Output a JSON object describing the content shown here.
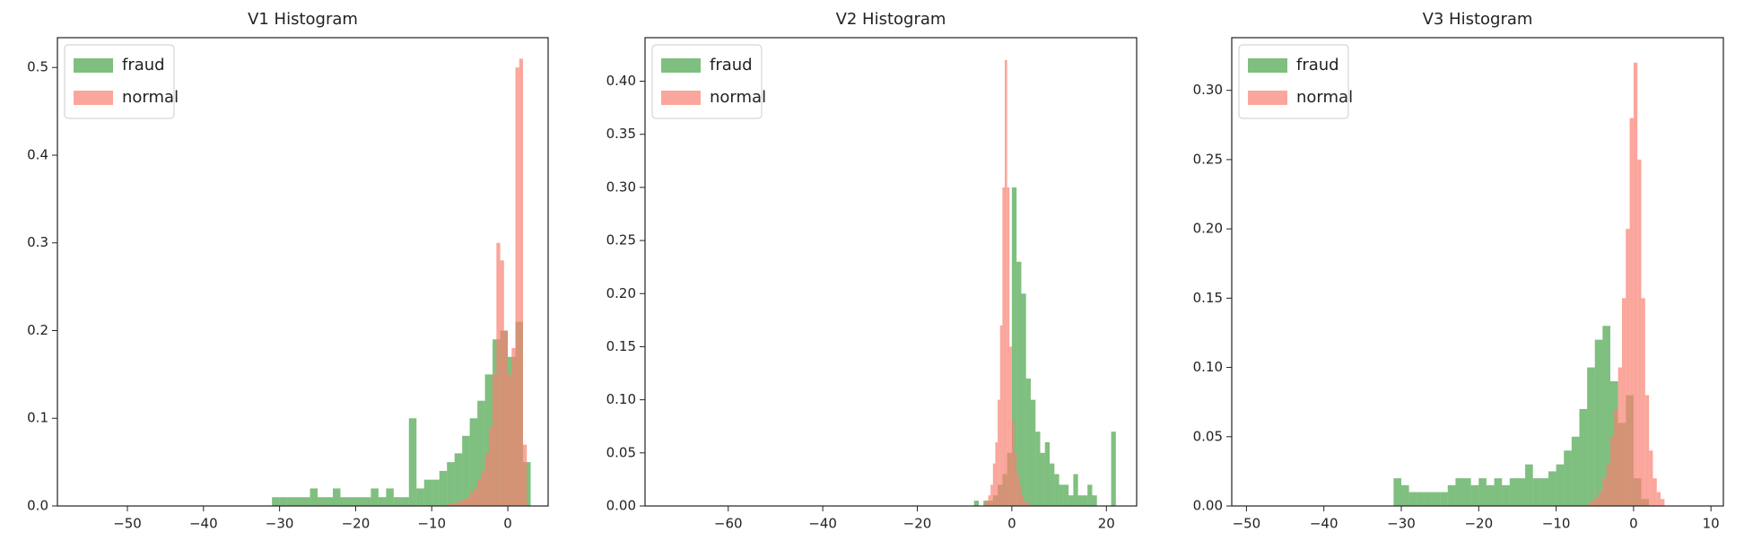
{
  "chart_data": [
    {
      "type": "histogram",
      "title": "V1 Histogram",
      "legend": "upper left",
      "xlim": [
        -59.2,
        5.3
      ],
      "ylim": [
        0,
        0.534
      ],
      "xticks": [
        {
          "value": -50,
          "label": "−50"
        },
        {
          "value": -40,
          "label": "−40"
        },
        {
          "value": -30,
          "label": "−30"
        },
        {
          "value": -20,
          "label": "−20"
        },
        {
          "value": -10,
          "label": "−10"
        },
        0
      ],
      "yticks": [
        {
          "value": 0,
          "label": "0.0"
        },
        0.1,
        0.2,
        0.3,
        0.4,
        0.5
      ],
      "series": [
        {
          "name": "fraud",
          "color": "#008000",
          "bins": [
            -31,
            -30,
            -29,
            -28,
            -27,
            -26,
            -25,
            -24,
            -23,
            -22,
            -21,
            -20,
            -19,
            -18,
            -17,
            -16,
            -15,
            -14,
            -13,
            -12,
            -11,
            -10,
            -9,
            -8,
            -7,
            -6,
            -5,
            -4,
            -3,
            -2,
            -1,
            0,
            1,
            2,
            3
          ],
          "values": [
            0.01,
            0.01,
            0.01,
            0.01,
            0.01,
            0.02,
            0.01,
            0.01,
            0.02,
            0.01,
            0.01,
            0.01,
            0.01,
            0.02,
            0.01,
            0.02,
            0.01,
            0.01,
            0.1,
            0.02,
            0.03,
            0.03,
            0.04,
            0.05,
            0.06,
            0.08,
            0.1,
            0.12,
            0.15,
            0.19,
            0.2,
            0.17,
            0.21,
            0.05
          ]
        },
        {
          "name": "normal",
          "color": "#fa8072",
          "bins": [
            -8,
            -7.5,
            -7,
            -6.5,
            -6,
            -5.5,
            -5,
            -4.5,
            -4,
            -3.5,
            -3,
            -2.5,
            -2,
            -1.5,
            -1,
            -0.5,
            0,
            0.5,
            1,
            1.5,
            2,
            2.5
          ],
          "values": [
            0.002,
            0.003,
            0.004,
            0.005,
            0.007,
            0.01,
            0.015,
            0.02,
            0.03,
            0.04,
            0.06,
            0.09,
            0.15,
            0.3,
            0.28,
            0.2,
            0.15,
            0.18,
            0.5,
            0.51,
            0.07
          ]
        }
      ]
    },
    {
      "type": "histogram",
      "title": "V2 Histogram",
      "legend": "upper left",
      "xlim": [
        -77.6,
        26.4
      ],
      "ylim": [
        0,
        0.441
      ],
      "xticks": [
        {
          "value": -60,
          "label": "−60"
        },
        {
          "value": -40,
          "label": "−40"
        },
        {
          "value": -20,
          "label": "−20"
        },
        0,
        20
      ],
      "yticks": [
        {
          "value": 0,
          "label": "0.00"
        },
        0.05,
        {
          "value": 0.1,
          "label": "0.10"
        },
        0.15,
        {
          "value": 0.2,
          "label": "0.20"
        },
        0.25,
        {
          "value": 0.3,
          "label": "0.30"
        },
        0.35,
        {
          "value": 0.4,
          "label": "0.40"
        }
      ],
      "series": [
        {
          "name": "fraud",
          "color": "#008000",
          "bins": [
            -8,
            -7,
            -6,
            -5,
            -4,
            -3,
            -2,
            -1,
            0,
            1,
            2,
            3,
            4,
            5,
            6,
            7,
            8,
            9,
            10,
            11,
            12,
            13,
            14,
            15,
            16,
            17,
            18,
            19,
            20,
            21,
            22
          ],
          "values": [
            0.005,
            0,
            0.005,
            0.005,
            0.01,
            0.02,
            0.03,
            0.05,
            0.3,
            0.23,
            0.2,
            0.12,
            0.1,
            0.07,
            0.05,
            0.06,
            0.04,
            0.03,
            0.02,
            0.02,
            0.01,
            0.03,
            0.01,
            0.01,
            0.02,
            0.01,
            0,
            0,
            0,
            0.07
          ]
        },
        {
          "name": "normal",
          "color": "#fa8072",
          "bins": [
            -6,
            -5.5,
            -5,
            -4.5,
            -4,
            -3.5,
            -3,
            -2.5,
            -2,
            -1.5,
            -1,
            -0.5,
            0,
            0.5,
            1,
            1.5,
            2,
            2.5,
            3,
            3.5,
            4
          ],
          "values": [
            0.002,
            0.005,
            0.01,
            0.02,
            0.04,
            0.06,
            0.1,
            0.17,
            0.3,
            0.42,
            0.3,
            0.15,
            0.08,
            0.05,
            0.03,
            0.02,
            0.01,
            0.005,
            0.003,
            0.002
          ]
        }
      ]
    },
    {
      "type": "histogram",
      "title": "V3 Histogram",
      "legend": "upper left",
      "xlim": [
        -51.9,
        11.6
      ],
      "ylim": [
        0,
        0.338
      ],
      "xticks": [
        {
          "value": -50,
          "label": "−50"
        },
        {
          "value": -40,
          "label": "−40"
        },
        {
          "value": -30,
          "label": "−30"
        },
        {
          "value": -20,
          "label": "−20"
        },
        {
          "value": -10,
          "label": "−10"
        },
        0,
        10
      ],
      "yticks": [
        {
          "value": 0,
          "label": "0.00"
        },
        0.05,
        {
          "value": 0.1,
          "label": "0.10"
        },
        0.15,
        {
          "value": 0.2,
          "label": "0.20"
        },
        0.25,
        {
          "value": 0.3,
          "label": "0.30"
        }
      ],
      "series": [
        {
          "name": "fraud",
          "color": "#008000",
          "bins": [
            -31,
            -30,
            -29,
            -28,
            -27,
            -26,
            -25,
            -24,
            -23,
            -22,
            -21,
            -20,
            -19,
            -18,
            -17,
            -16,
            -15,
            -14,
            -13,
            -12,
            -11,
            -10,
            -9,
            -8,
            -7,
            -6,
            -5,
            -4,
            -3,
            -2,
            -1,
            0,
            1,
            2
          ],
          "values": [
            0.02,
            0.015,
            0.01,
            0.01,
            0.01,
            0.01,
            0.01,
            0.015,
            0.02,
            0.02,
            0.015,
            0.02,
            0.015,
            0.02,
            0.015,
            0.02,
            0.02,
            0.03,
            0.02,
            0.02,
            0.025,
            0.03,
            0.04,
            0.05,
            0.07,
            0.1,
            0.12,
            0.13,
            0.09,
            0.06,
            0.08,
            0.02,
            0.005
          ]
        },
        {
          "name": "normal",
          "color": "#fa8072",
          "bins": [
            -6,
            -5.5,
            -5,
            -4.5,
            -4,
            -3.5,
            -3,
            -2.5,
            -2,
            -1.5,
            -1,
            -0.5,
            0,
            0.5,
            1,
            1.5,
            2,
            2.5,
            3,
            3.5,
            4
          ],
          "values": [
            0.002,
            0.004,
            0.006,
            0.01,
            0.02,
            0.03,
            0.05,
            0.07,
            0.1,
            0.15,
            0.2,
            0.28,
            0.32,
            0.25,
            0.15,
            0.08,
            0.04,
            0.02,
            0.01,
            0.005
          ]
        }
      ]
    }
  ]
}
